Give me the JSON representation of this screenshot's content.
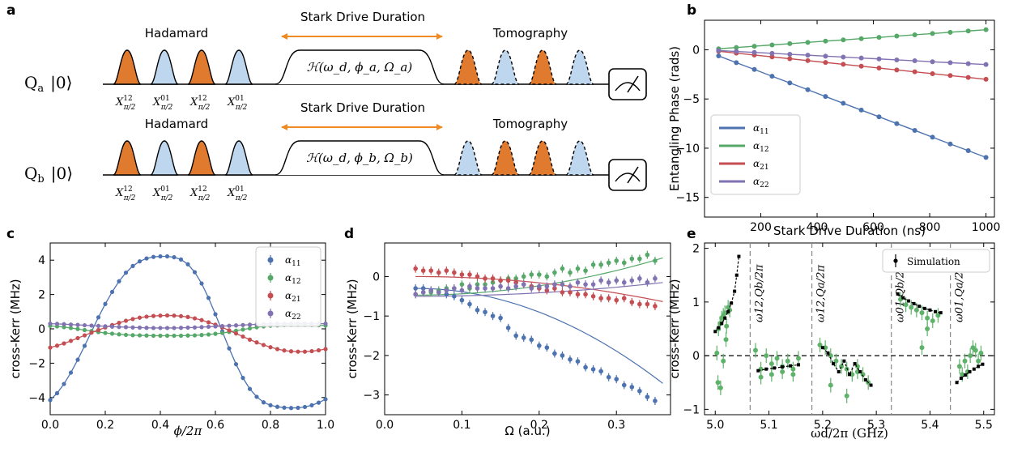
{
  "panels": {
    "a": "a",
    "b": "b",
    "c": "c",
    "d": "d",
    "e": "e"
  },
  "circuit": {
    "qubit_a": "Q_a |0⟩",
    "qubit_b": "Q_b |0⟩",
    "hadamard": "Hadamard",
    "stark_drive": "Stark Drive Duration",
    "tomography": "Tomography",
    "hamiltonian_a": "ℋ(ω_d, ϕ_a, Ω_a)",
    "hamiltonian_b": "ℋ(ω_d, ϕ_b, Ω_b)",
    "pulse_labels": [
      "X^{12}_{π/2}",
      "X^{01}_{π/2}",
      "X^{12}_{π/2}",
      "X^{01}_{π/2}"
    ],
    "colors": {
      "orange": "#E07A2E",
      "blue": "#BFD7EE",
      "arrow": "#F08A24"
    }
  },
  "colors": {
    "blue": "#4C72B0",
    "green": "#55A868",
    "red": "#C44E52",
    "purple": "#8172B2",
    "black": "#000000",
    "ptgreen": "#5FB26A"
  },
  "chart_data": [
    {
      "panel": "b",
      "type": "line",
      "xlabel": "Stark Drive Duration (ns)",
      "ylabel": "Entangling Phase (rads)",
      "xlim": [
        0,
        1030
      ],
      "ylim": [
        -17,
        3
      ],
      "xticks": [
        200,
        400,
        600,
        800,
        1000
      ],
      "yticks": [
        0,
        -5,
        -10,
        -15
      ],
      "legend_position": "lower-left",
      "x": [
        50,
        113,
        177,
        240,
        303,
        367,
        430,
        493,
        557,
        620,
        683,
        747,
        810,
        873,
        937,
        1000
      ],
      "series": [
        {
          "name": "α11",
          "color": "blue",
          "values": [
            -0.62,
            -1.31,
            -2.0,
            -2.69,
            -3.37,
            -4.06,
            -4.75,
            -5.44,
            -6.13,
            -6.81,
            -7.5,
            -8.19,
            -8.88,
            -9.57,
            -10.25,
            -10.94
          ]
        },
        {
          "name": "α12",
          "color": "green",
          "values": [
            0.1,
            0.23,
            0.36,
            0.49,
            0.62,
            0.75,
            0.88,
            1.0,
            1.13,
            1.26,
            1.39,
            1.52,
            1.65,
            1.78,
            1.91,
            2.04
          ]
        },
        {
          "name": "α21",
          "color": "red",
          "values": [
            -0.15,
            -0.34,
            -0.53,
            -0.72,
            -0.91,
            -1.1,
            -1.29,
            -1.48,
            -1.67,
            -1.86,
            -2.05,
            -2.24,
            -2.43,
            -2.62,
            -2.81,
            -3.0
          ]
        },
        {
          "name": "α22",
          "color": "purple",
          "values": [
            -0.08,
            -0.17,
            -0.27,
            -0.36,
            -0.46,
            -0.55,
            -0.65,
            -0.74,
            -0.84,
            -0.93,
            -1.03,
            -1.12,
            -1.22,
            -1.31,
            -1.41,
            -1.5
          ]
        }
      ]
    },
    {
      "panel": "c",
      "type": "scatter",
      "xlabel": "ϕ/2π",
      "ylabel": "cross-Kerr (MHz)",
      "xlim": [
        0,
        1
      ],
      "ylim": [
        -5,
        5
      ],
      "xticks": [
        0.0,
        0.2,
        0.4,
        0.6,
        0.8,
        1.0
      ],
      "yticks": [
        -4,
        -2,
        0,
        2,
        4
      ],
      "legend_position": "top-right",
      "x": [
        0.0,
        0.025,
        0.05,
        0.075,
        0.1,
        0.125,
        0.15,
        0.175,
        0.2,
        0.225,
        0.25,
        0.275,
        0.3,
        0.325,
        0.35,
        0.375,
        0.4,
        0.425,
        0.45,
        0.475,
        0.5,
        0.525,
        0.55,
        0.575,
        0.6,
        0.625,
        0.65,
        0.675,
        0.7,
        0.725,
        0.75,
        0.775,
        0.8,
        0.825,
        0.85,
        0.875,
        0.9,
        0.925,
        0.95,
        0.975,
        1.0
      ],
      "series": [
        {
          "name": "α11",
          "color": "blue",
          "values": [
            -4.15,
            -3.75,
            -3.21,
            -2.55,
            -1.8,
            -0.99,
            -0.16,
            0.67,
            1.45,
            2.15,
            2.77,
            3.27,
            3.66,
            3.93,
            4.1,
            4.19,
            4.22,
            4.22,
            4.17,
            4.04,
            3.76,
            3.3,
            2.64,
            1.8,
            0.85,
            -0.15,
            -1.14,
            -2.06,
            -2.86,
            -3.5,
            -3.96,
            -4.28,
            -4.45,
            -4.54,
            -4.59,
            -4.61,
            -4.6,
            -4.55,
            -4.45,
            -4.3,
            -4.1
          ]
        },
        {
          "name": "α12",
          "color": "green",
          "values": [
            0.17,
            0.14,
            0.1,
            0.05,
            -0.01,
            -0.07,
            -0.13,
            -0.19,
            -0.24,
            -0.28,
            -0.32,
            -0.35,
            -0.37,
            -0.38,
            -0.39,
            -0.4,
            -0.4,
            -0.4,
            -0.4,
            -0.4,
            -0.39,
            -0.38,
            -0.36,
            -0.33,
            -0.29,
            -0.24,
            -0.18,
            -0.11,
            -0.04,
            0.03,
            0.09,
            0.14,
            0.18,
            0.2,
            0.22,
            0.23,
            0.23,
            0.23,
            0.22,
            0.21,
            0.19
          ]
        },
        {
          "name": "α21",
          "color": "red",
          "values": [
            -1.09,
            -0.98,
            -0.85,
            -0.7,
            -0.54,
            -0.38,
            -0.22,
            -0.07,
            0.08,
            0.22,
            0.35,
            0.47,
            0.57,
            0.65,
            0.71,
            0.75,
            0.77,
            0.78,
            0.77,
            0.74,
            0.69,
            0.61,
            0.51,
            0.38,
            0.24,
            0.08,
            -0.09,
            -0.27,
            -0.45,
            -0.63,
            -0.79,
            -0.94,
            -1.07,
            -1.18,
            -1.26,
            -1.31,
            -1.33,
            -1.33,
            -1.3,
            -1.25,
            -1.18
          ]
        },
        {
          "name": "α22",
          "color": "purple",
          "values": [
            0.3,
            0.29,
            0.27,
            0.25,
            0.23,
            0.21,
            0.19,
            0.17,
            0.15,
            0.13,
            0.11,
            0.1,
            0.08,
            0.07,
            0.06,
            0.05,
            0.05,
            0.05,
            0.05,
            0.06,
            0.07,
            0.08,
            0.1,
            0.12,
            0.14,
            0.16,
            0.18,
            0.2,
            0.22,
            0.24,
            0.26,
            0.28,
            0.29,
            0.3,
            0.3,
            0.31,
            0.31,
            0.31,
            0.31,
            0.3,
            0.3
          ]
        }
      ]
    },
    {
      "panel": "d",
      "type": "scatter",
      "xlabel": "Ω (a.u.)",
      "ylabel": "cross-Kerr (MHz)",
      "xlim": [
        0,
        0.37
      ],
      "ylim": [
        -3.5,
        0.85
      ],
      "xticks": [
        0.0,
        0.1,
        0.2,
        0.3
      ],
      "yticks": [
        0,
        -1,
        -2,
        -3
      ],
      "x": [
        0.04,
        0.05,
        0.06,
        0.07,
        0.08,
        0.09,
        0.1,
        0.11,
        0.12,
        0.13,
        0.14,
        0.15,
        0.16,
        0.17,
        0.18,
        0.19,
        0.2,
        0.21,
        0.22,
        0.23,
        0.24,
        0.25,
        0.26,
        0.27,
        0.28,
        0.29,
        0.3,
        0.31,
        0.32,
        0.33,
        0.34,
        0.35
      ],
      "series": [
        {
          "name": "α11",
          "color": "blue",
          "values": [
            -0.3,
            -0.3,
            -0.35,
            -0.4,
            -0.45,
            -0.5,
            -0.6,
            -0.7,
            -0.85,
            -0.9,
            -1.0,
            -1.05,
            -1.3,
            -1.5,
            -1.55,
            -1.6,
            -1.75,
            -1.8,
            -1.95,
            -2.0,
            -2.1,
            -2.15,
            -2.3,
            -2.35,
            -2.4,
            -2.55,
            -2.6,
            -2.75,
            -2.8,
            -2.9,
            -3.05,
            -3.15
          ]
        },
        {
          "name": "α12",
          "color": "green",
          "values": [
            -0.45,
            -0.4,
            -0.4,
            -0.35,
            -0.3,
            -0.3,
            -0.2,
            -0.3,
            -0.2,
            -0.2,
            -0.15,
            -0.1,
            -0.05,
            -0.05,
            0.0,
            0.05,
            0.05,
            0.0,
            0.1,
            0.2,
            0.1,
            0.2,
            0.15,
            0.3,
            0.3,
            0.35,
            0.4,
            0.35,
            0.45,
            0.45,
            0.55,
            0.4
          ]
        },
        {
          "name": "α21",
          "color": "red",
          "values": [
            0.2,
            0.15,
            0.15,
            0.1,
            0.15,
            0.1,
            0.05,
            0.05,
            0.0,
            -0.05,
            -0.05,
            -0.1,
            -0.1,
            -0.15,
            -0.2,
            -0.25,
            -0.3,
            -0.35,
            -0.3,
            -0.4,
            -0.4,
            -0.45,
            -0.45,
            -0.5,
            -0.55,
            -0.55,
            -0.6,
            -0.55,
            -0.65,
            -0.7,
            -0.7,
            -0.75
          ]
        },
        {
          "name": "α22",
          "color": "purple",
          "values": [
            -0.45,
            -0.4,
            -0.35,
            -0.4,
            -0.35,
            -0.3,
            -0.35,
            -0.25,
            -0.3,
            -0.3,
            -0.3,
            -0.25,
            -0.3,
            -0.25,
            -0.2,
            -0.3,
            -0.25,
            -0.25,
            -0.2,
            -0.2,
            -0.25,
            -0.15,
            -0.2,
            -0.2,
            -0.1,
            -0.15,
            -0.1,
            -0.15,
            -0.1,
            -0.05,
            -0.15,
            -0.05
          ]
        }
      ],
      "fits": [
        {
          "color": "blue",
          "a": -0.3,
          "b": -23.5
        },
        {
          "color": "green",
          "a": -0.47,
          "b": 9.2
        },
        {
          "color": "red",
          "a": 0.0,
          "b": -6.2
        },
        {
          "color": "purple",
          "a": -0.5,
          "b": 3.4
        }
      ]
    },
    {
      "panel": "e",
      "type": "scatter",
      "xlabel": "ω_d/2π (GHz)",
      "ylabel": "cross-Kerr (MHz)",
      "xlim": [
        4.98,
        5.52
      ],
      "ylim": [
        -1.1,
        2.1
      ],
      "xticks": [
        5.0,
        5.1,
        5.2,
        5.3,
        5.4,
        5.5
      ],
      "yticks": [
        2,
        1,
        0,
        -1
      ],
      "legend_position": "top-right",
      "legend": "Simulation",
      "dashed_x": [
        5.065,
        5.18,
        5.328,
        5.438
      ],
      "vlabels": [
        "ω_{12,Q_b}/2π",
        "ω_{12,Q_a}/2π",
        "ω_{01,Q_b}/2π",
        "ω_{01,Q_a}/2π"
      ],
      "experiment": {
        "x": [
          5.003,
          5.006,
          5.009,
          5.012,
          5.015,
          5.018,
          5.021,
          5.024,
          5.027,
          5.005,
          5.01,
          5.015,
          5.02,
          5.075,
          5.085,
          5.095,
          5.105,
          5.115,
          5.125,
          5.135,
          5.145,
          5.155,
          5.085,
          5.105,
          5.125,
          5.145,
          5.195,
          5.205,
          5.215,
          5.225,
          5.235,
          5.245,
          5.255,
          5.265,
          5.275,
          5.285,
          5.215,
          5.245,
          5.265,
          5.345,
          5.355,
          5.365,
          5.375,
          5.385,
          5.395,
          5.405,
          5.415,
          5.385,
          5.395,
          5.455,
          5.465,
          5.475,
          5.485,
          5.495,
          5.46,
          5.47,
          5.48,
          5.49
        ],
        "y": [
          0.05,
          0.5,
          0.6,
          0.7,
          0.75,
          0.8,
          0.55,
          0.9,
          0.85,
          -0.5,
          -0.6,
          -0.1,
          0.3,
          0.1,
          -0.25,
          0.0,
          -0.15,
          -0.05,
          -0.2,
          -0.1,
          -0.25,
          -0.05,
          -0.4,
          -0.35,
          -0.3,
          -0.35,
          0.2,
          0.15,
          0.0,
          -0.1,
          -0.2,
          -0.25,
          -0.35,
          -0.2,
          -0.35,
          -0.5,
          -0.55,
          -0.75,
          -0.3,
          1.05,
          0.95,
          0.9,
          0.85,
          0.8,
          0.7,
          0.65,
          0.75,
          0.15,
          0.5,
          -0.2,
          -0.1,
          0.0,
          0.1,
          0.05,
          -0.35,
          -0.3,
          0.15,
          -0.1
        ]
      },
      "simulation": [
        {
          "x": [
            5.0,
            5.006,
            5.012,
            5.018,
            5.024,
            5.03,
            5.036,
            5.04,
            5.044
          ],
          "y": [
            0.45,
            0.52,
            0.6,
            0.7,
            0.82,
            0.98,
            1.2,
            1.5,
            1.85
          ]
        },
        {
          "x": [
            5.08,
            5.095,
            5.11,
            5.125,
            5.14,
            5.155
          ],
          "y": [
            -0.28,
            -0.25,
            -0.23,
            -0.21,
            -0.19,
            -0.17
          ]
        },
        {
          "x": [
            5.2,
            5.21,
            5.22,
            5.23,
            5.24,
            5.25,
            5.26,
            5.27,
            5.28,
            5.29
          ],
          "y": [
            0.15,
            0.05,
            -0.15,
            -0.3,
            -0.1,
            -0.35,
            -0.15,
            -0.3,
            -0.45,
            -0.55
          ]
        },
        {
          "x": [
            5.34,
            5.35,
            5.36,
            5.37,
            5.38,
            5.39,
            5.4,
            5.41,
            5.42
          ],
          "y": [
            1.15,
            1.08,
            1.02,
            0.97,
            0.92,
            0.88,
            0.85,
            0.82,
            0.8
          ]
        },
        {
          "x": [
            5.45,
            5.458,
            5.466,
            5.474,
            5.482,
            5.49,
            5.498
          ],
          "y": [
            -0.5,
            -0.42,
            -0.36,
            -0.3,
            -0.25,
            -0.2,
            -0.16
          ]
        }
      ]
    }
  ]
}
